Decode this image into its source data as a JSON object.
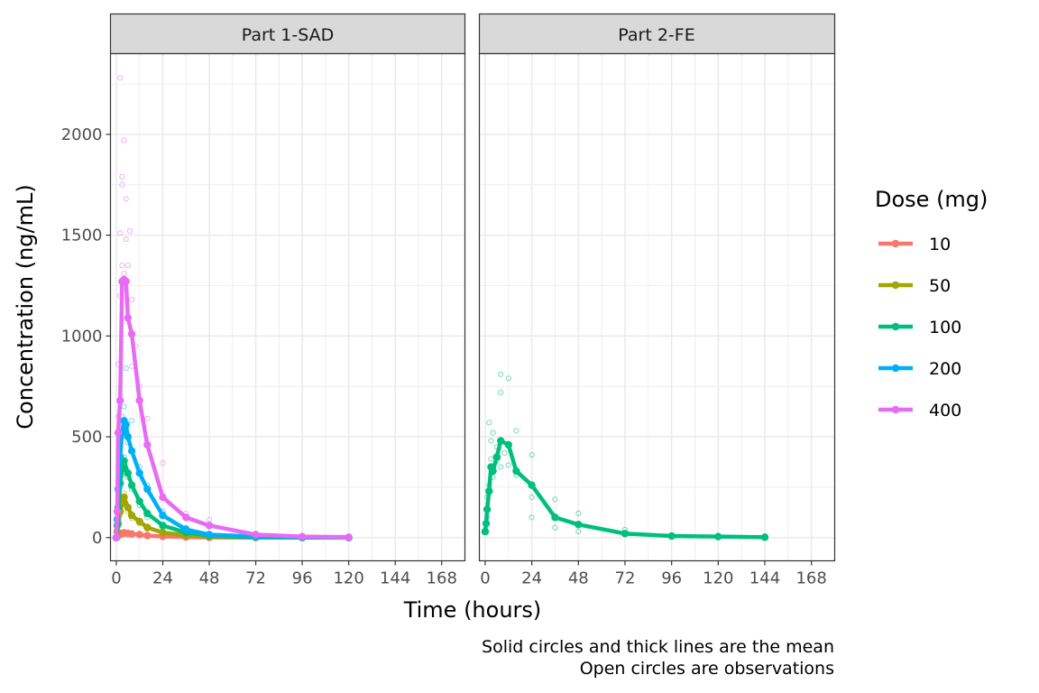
{
  "chart_data": {
    "type": "line",
    "xlabel": "Time (hours)",
    "ylabel": "Concentration (ng/mL)",
    "xlim": [
      -3,
      180
    ],
    "ylim": [
      -115,
      2400
    ],
    "xticks": [
      0,
      24,
      48,
      72,
      96,
      120,
      144,
      168
    ],
    "yticks": [
      0,
      500,
      1000,
      1500,
      2000
    ],
    "grid": true,
    "legend": {
      "title": "Dose (mg)",
      "placement": "right",
      "entries": [
        "10",
        "50",
        "100",
        "200",
        "400"
      ]
    },
    "colors": {
      "10": "#F8766D",
      "50": "#A3A500",
      "100": "#00BF7D",
      "200": "#00B0F6",
      "400": "#E76BF3"
    },
    "caption": [
      "Solid circles and thick lines are the mean",
      "Open circles are observations"
    ],
    "panels": [
      {
        "label": "Part 1-SAD",
        "series": [
          {
            "name": "10",
            "mean": [
              [
                0,
                0
              ],
              [
                0.5,
                5
              ],
              [
                1,
                10
              ],
              [
                2,
                15
              ],
              [
                3,
                20
              ],
              [
                4,
                22
              ],
              [
                6,
                20
              ],
              [
                8,
                18
              ],
              [
                12,
                15
              ],
              [
                16,
                10
              ],
              [
                24,
                6
              ],
              [
                36,
                3
              ],
              [
                48,
                1
              ],
              [
                72,
                0.5
              ],
              [
                96,
                0.2
              ],
              [
                120,
                0.1
              ]
            ],
            "obs": [
              [
                0.5,
                3
              ],
              [
                1,
                8
              ],
              [
                1,
                14
              ],
              [
                2,
                12
              ],
              [
                2,
                22
              ],
              [
                3,
                25
              ],
              [
                4,
                30
              ],
              [
                4,
                18
              ],
              [
                6,
                28
              ],
              [
                8,
                22
              ],
              [
                12,
                20
              ],
              [
                16,
                12
              ],
              [
                24,
                8
              ]
            ]
          },
          {
            "name": "50",
            "mean": [
              [
                0,
                0
              ],
              [
                0.5,
                30
              ],
              [
                1,
                70
              ],
              [
                2,
                130
              ],
              [
                3,
                170
              ],
              [
                4,
                200
              ],
              [
                6,
                150
              ],
              [
                8,
                110
              ],
              [
                12,
                80
              ],
              [
                16,
                50
              ],
              [
                24,
                25
              ],
              [
                36,
                12
              ],
              [
                48,
                5
              ],
              [
                72,
                1
              ],
              [
                96,
                0.5
              ],
              [
                120,
                0.2
              ]
            ],
            "obs": [
              [
                1,
                60
              ],
              [
                2,
                110
              ],
              [
                2,
                150
              ],
              [
                3,
                180
              ],
              [
                4,
                220
              ],
              [
                4,
                170
              ],
              [
                6,
                130
              ],
              [
                8,
                95
              ],
              [
                12,
                70
              ],
              [
                16,
                45
              ],
              [
                24,
                20
              ]
            ]
          },
          {
            "name": "100",
            "mean": [
              [
                0,
                0
              ],
              [
                0.5,
                60
              ],
              [
                1,
                150
              ],
              [
                2,
                270
              ],
              [
                3,
                340
              ],
              [
                4,
                380
              ],
              [
                6,
                320
              ],
              [
                8,
                260
              ],
              [
                12,
                180
              ],
              [
                16,
                120
              ],
              [
                24,
                60
              ],
              [
                36,
                25
              ],
              [
                48,
                10
              ],
              [
                72,
                2
              ],
              [
                96,
                0.5
              ],
              [
                120,
                0.2
              ]
            ],
            "obs": [
              [
                1,
                140
              ],
              [
                2,
                250
              ],
              [
                3,
                310
              ],
              [
                4,
                400
              ],
              [
                4,
                350
              ],
              [
                6,
                300
              ],
              [
                8,
                240
              ],
              [
                12,
                160
              ],
              [
                16,
                100
              ],
              [
                24,
                50
              ]
            ]
          },
          {
            "name": "200",
            "mean": [
              [
                0,
                0
              ],
              [
                0.5,
                90
              ],
              [
                1,
                240
              ],
              [
                2,
                400
              ],
              [
                3,
                520
              ],
              [
                4,
                580
              ],
              [
                5,
                560
              ],
              [
                6,
                500
              ],
              [
                8,
                430
              ],
              [
                12,
                320
              ],
              [
                16,
                240
              ],
              [
                24,
                110
              ],
              [
                36,
                40
              ],
              [
                48,
                15
              ],
              [
                72,
                5
              ],
              [
                96,
                1
              ],
              [
                120,
                0.2
              ]
            ],
            "obs": [
              [
                0.5,
                120
              ],
              [
                1,
                200
              ],
              [
                1,
                280
              ],
              [
                2,
                360
              ],
              [
                2,
                480
              ],
              [
                3,
                600
              ],
              [
                4,
                650
              ],
              [
                4,
                520
              ],
              [
                5,
                840
              ],
              [
                6,
                470
              ],
              [
                8,
                580
              ],
              [
                12,
                350
              ],
              [
                16,
                260
              ],
              [
                24,
                130
              ],
              [
                36,
                50
              ]
            ]
          },
          {
            "name": "400",
            "mean": [
              [
                0,
                0
              ],
              [
                0.5,
                130
              ],
              [
                1,
                520
              ],
              [
                2,
                680
              ],
              [
                3,
                1270
              ],
              [
                4,
                1280
              ],
              [
                5,
                1270
              ],
              [
                6,
                1090
              ],
              [
                8,
                1010
              ],
              [
                12,
                680
              ],
              [
                16,
                460
              ],
              [
                24,
                200
              ],
              [
                36,
                100
              ],
              [
                48,
                60
              ],
              [
                72,
                15
              ],
              [
                96,
                5
              ],
              [
                120,
                2
              ]
            ],
            "obs": [
              [
                1,
                600
              ],
              [
                1,
                860
              ],
              [
                2,
                1200
              ],
              [
                2,
                1510
              ],
              [
                2,
                2280
              ],
              [
                3,
                1750
              ],
              [
                3,
                1790
              ],
              [
                3,
                1350
              ],
              [
                4,
                1970
              ],
              [
                4,
                1310
              ],
              [
                5,
                1680
              ],
              [
                5,
                1480
              ],
              [
                6,
                1350
              ],
              [
                7,
                1520
              ],
              [
                8,
                1180
              ],
              [
                8,
                850
              ],
              [
                10,
                950
              ],
              [
                12,
                750
              ],
              [
                16,
                590
              ],
              [
                24,
                370
              ],
              [
                36,
                120
              ],
              [
                48,
                90
              ]
            ]
          }
        ]
      },
      {
        "label": "Part 2-FE",
        "series": [
          {
            "name": "100",
            "mean": [
              [
                0,
                30
              ],
              [
                0.5,
                70
              ],
              [
                1,
                140
              ],
              [
                2,
                230
              ],
              [
                3,
                350
              ],
              [
                4,
                330
              ],
              [
                6,
                400
              ],
              [
                8,
                480
              ],
              [
                12,
                460
              ],
              [
                16,
                330
              ],
              [
                24,
                260
              ],
              [
                36,
                100
              ],
              [
                48,
                65
              ],
              [
                72,
                20
              ],
              [
                96,
                8
              ],
              [
                120,
                5
              ],
              [
                144,
                2
              ]
            ],
            "obs": [
              [
                0.5,
                30
              ],
              [
                1,
                100
              ],
              [
                1,
                200
              ],
              [
                2,
                260
              ],
              [
                2,
                570
              ],
              [
                3,
                480
              ],
              [
                3,
                390
              ],
              [
                4,
                520
              ],
              [
                4,
                300
              ],
              [
                6,
                450
              ],
              [
                6,
                380
              ],
              [
                8,
                720
              ],
              [
                8,
                810
              ],
              [
                8,
                350
              ],
              [
                10,
                420
              ],
              [
                12,
                790
              ],
              [
                12,
                360
              ],
              [
                16,
                530
              ],
              [
                16,
                310
              ],
              [
                24,
                410
              ],
              [
                24,
                200
              ],
              [
                24,
                100
              ],
              [
                36,
                190
              ],
              [
                36,
                50
              ],
              [
                48,
                120
              ],
              [
                48,
                30
              ],
              [
                72,
                40
              ]
            ]
          }
        ]
      }
    ]
  }
}
